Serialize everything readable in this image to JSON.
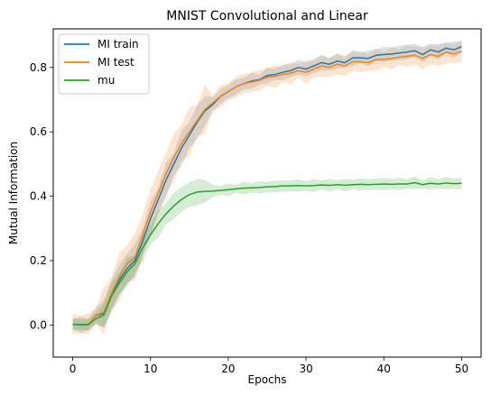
{
  "chart_data": {
    "type": "line",
    "title": "MNIST Convolutional and Linear",
    "xlabel": "Epochs",
    "ylabel": "Mutual Information",
    "xlim": [
      -2.5,
      52.5
    ],
    "ylim": [
      -0.1,
      0.92
    ],
    "xticks": [
      "0",
      "10",
      "20",
      "30",
      "40",
      "50"
    ],
    "yticks": [
      "0.0",
      "0.2",
      "0.4",
      "0.6",
      "0.8"
    ],
    "grid": false,
    "legend_position": "top-left",
    "x": [
      0,
      1,
      2,
      3,
      4,
      5,
      6,
      7,
      8,
      9,
      10,
      11,
      12,
      13,
      14,
      15,
      16,
      17,
      18,
      19,
      20,
      21,
      22,
      23,
      24,
      25,
      26,
      27,
      28,
      29,
      30,
      31,
      32,
      33,
      34,
      35,
      36,
      37,
      38,
      39,
      40,
      41,
      42,
      43,
      44,
      45,
      46,
      47,
      48,
      49,
      50
    ],
    "series": [
      {
        "name": "MI train",
        "color": "#1f77b4",
        "values": [
          0.002,
          0.001,
          0.001,
          0.03,
          0.035,
          0.09,
          0.14,
          0.175,
          0.2,
          0.26,
          0.33,
          0.39,
          0.45,
          0.5,
          0.55,
          0.59,
          0.63,
          0.665,
          0.685,
          0.71,
          0.725,
          0.74,
          0.75,
          0.758,
          0.762,
          0.775,
          0.778,
          0.785,
          0.79,
          0.8,
          0.795,
          0.805,
          0.815,
          0.81,
          0.82,
          0.815,
          0.83,
          0.83,
          0.828,
          0.838,
          0.84,
          0.842,
          0.845,
          0.848,
          0.852,
          0.84,
          0.855,
          0.848,
          0.86,
          0.855,
          0.865
        ],
        "band": 0.025
      },
      {
        "name": "MI test",
        "color": "#ff7f0e",
        "values": [
          0.002,
          0.001,
          0.001,
          0.03,
          0.04,
          0.1,
          0.15,
          0.19,
          0.21,
          0.28,
          0.35,
          0.41,
          0.47,
          0.52,
          0.565,
          0.6,
          0.635,
          0.67,
          0.69,
          0.71,
          0.725,
          0.74,
          0.75,
          0.755,
          0.76,
          0.77,
          0.772,
          0.778,
          0.782,
          0.79,
          0.785,
          0.795,
          0.805,
          0.8,
          0.81,
          0.805,
          0.818,
          0.818,
          0.815,
          0.825,
          0.825,
          0.828,
          0.832,
          0.835,
          0.838,
          0.828,
          0.84,
          0.835,
          0.848,
          0.842,
          0.85
        ],
        "band": 0.035
      },
      {
        "name": "mu",
        "color": "#2ca02c",
        "values": [
          0.002,
          0.001,
          0.001,
          0.02,
          0.03,
          0.09,
          0.13,
          0.165,
          0.19,
          0.24,
          0.28,
          0.315,
          0.345,
          0.37,
          0.39,
          0.405,
          0.413,
          0.415,
          0.416,
          0.418,
          0.42,
          0.423,
          0.425,
          0.426,
          0.427,
          0.429,
          0.43,
          0.432,
          0.432,
          0.433,
          0.432,
          0.433,
          0.435,
          0.434,
          0.436,
          0.434,
          0.436,
          0.437,
          0.436,
          0.437,
          0.438,
          0.437,
          0.438,
          0.438,
          0.442,
          0.436,
          0.44,
          0.438,
          0.441,
          0.439,
          0.44
        ],
        "band": 0.02
      }
    ]
  }
}
